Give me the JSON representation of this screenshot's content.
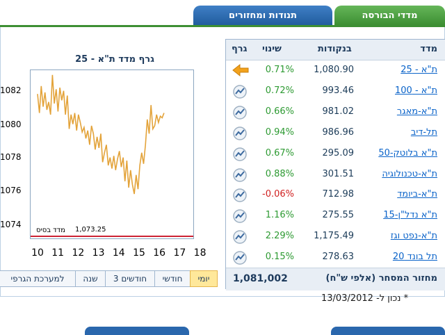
{
  "tabs": {
    "movements": "תנודות ומחזורים",
    "indices": "מדדי הבורסה"
  },
  "chart": {
    "title": "גרף מדד ת\"א - 25",
    "base_label": "מדד בסיס",
    "base_value": "1,073.25"
  },
  "chart_data": {
    "type": "line",
    "title": "גרף מדד ת\"א - 25",
    "xlabel": "",
    "ylabel": "",
    "x_ticks": [
      "10",
      "11",
      "12",
      "13",
      "14",
      "15",
      "16",
      "17",
      "18"
    ],
    "y_ticks": [
      "1082",
      "1080",
      "1078",
      "1076",
      "1074"
    ],
    "ylim": [
      1073.0,
      1083.6
    ],
    "xlim": [
      10,
      18
    ],
    "baseline": 1073.25,
    "series": [
      {
        "name": "",
        "color": "#e3a33a",
        "x": [
          10.0,
          10.1,
          10.2,
          10.3,
          10.4,
          10.5,
          10.6,
          10.7,
          10.8,
          10.9,
          11.0,
          11.1,
          11.2,
          11.3,
          11.4,
          11.5,
          11.6,
          11.7,
          11.8,
          11.9,
          12.0,
          12.1,
          12.2,
          12.3,
          12.4,
          12.5,
          12.6,
          12.7,
          12.8,
          12.9,
          13.0,
          13.1,
          13.2,
          13.3,
          13.4,
          13.5,
          13.6,
          13.7,
          13.8,
          13.9,
          14.0,
          14.1,
          14.2,
          14.3,
          14.4,
          14.5,
          14.6,
          14.7,
          14.8,
          14.9,
          15.0,
          15.1,
          15.2,
          15.3,
          15.4,
          15.5,
          15.6,
          15.7,
          15.8,
          15.9,
          16.0,
          16.1,
          16.2,
          16.3,
          16.4,
          16.5,
          16.6,
          16.7,
          16.8
        ],
        "values": [
          1082.1,
          1080.9,
          1082.6,
          1081.3,
          1082.2,
          1081.1,
          1081.6,
          1080.8,
          1083.3,
          1081.5,
          1082.4,
          1081.0,
          1082.5,
          1081.7,
          1082.3,
          1080.8,
          1082.0,
          1079.9,
          1080.8,
          1080.2,
          1080.9,
          1079.8,
          1080.8,
          1080.3,
          1079.7,
          1080.0,
          1079.3,
          1079.8,
          1078.9,
          1080.1,
          1079.6,
          1078.6,
          1079.4,
          1078.7,
          1079.6,
          1077.8,
          1078.4,
          1078.9,
          1077.6,
          1078.1,
          1077.4,
          1078.2,
          1077.3,
          1078.0,
          1078.5,
          1077.5,
          1078.1,
          1076.6,
          1077.9,
          1076.2,
          1077.3,
          1076.4,
          1075.8,
          1077.0,
          1076.1,
          1077.6,
          1078.4,
          1077.7,
          1078.9,
          1080.5,
          1079.6,
          1081.4,
          1079.9,
          1080.1,
          1080.8,
          1080.3,
          1080.7,
          1080.6,
          1080.9
        ]
      }
    ]
  },
  "period_buttons": [
    {
      "label": "יומי",
      "active": true
    },
    {
      "label": "חודשי",
      "active": false
    },
    {
      "label": "3 חודשים",
      "active": false
    },
    {
      "label": "שנה",
      "active": false
    },
    {
      "label": "למערכת הגרפי",
      "active": false
    }
  ],
  "table": {
    "headers": {
      "index": "מדד",
      "points": "בנקודות",
      "change": "שינוי",
      "graph": "גרף"
    },
    "rows": [
      {
        "name": "ת\"א - 25",
        "points": "1,080.90",
        "change": "0.71%",
        "dir": "pos",
        "icon": "arrow-left-icon"
      },
      {
        "name": "ת\"א - 100",
        "points": "993.46",
        "change": "0.72%",
        "dir": "pos",
        "icon": "chart-icon"
      },
      {
        "name": "ת\"א-מאגר",
        "points": "981.02",
        "change": "0.66%",
        "dir": "pos",
        "icon": "chart-icon"
      },
      {
        "name": "תל-דיב",
        "points": "986.96",
        "change": "0.94%",
        "dir": "pos",
        "icon": "chart-icon"
      },
      {
        "name": "ת\"א בלוטק-50",
        "points": "295.09",
        "change": "0.67%",
        "dir": "pos",
        "icon": "chart-icon"
      },
      {
        "name": "ת\"א-טכנולוגיה",
        "points": "301.51",
        "change": "0.88%",
        "dir": "pos",
        "icon": "chart-icon"
      },
      {
        "name": "ת\"א-ביומד",
        "points": "712.98",
        "change": "-0.06%",
        "dir": "neg",
        "icon": "chart-icon"
      },
      {
        "name": "ת\"א נדל\"ן-15",
        "points": "275.55",
        "change": "1.16%",
        "dir": "pos",
        "icon": "chart-icon"
      },
      {
        "name": "ת\"א-נפט וגז",
        "points": "1,175.49",
        "change": "2.29%",
        "dir": "pos",
        "icon": "chart-icon"
      },
      {
        "name": "תל בונד 20",
        "points": "278.63",
        "change": "0.15%",
        "dir": "pos",
        "icon": "chart-icon"
      }
    ],
    "turnover_label": "מחזור המסחר (אלפי ש\"ח)",
    "turnover_value": "1,081,002"
  },
  "updated": "* נכון ל- 13/03/2012",
  "colors": {
    "green_tab": "#4aa33f",
    "blue_tab": "#2a67ad",
    "positive": "#2d9a32",
    "negative": "#d01f1f",
    "line": "#e3a33a",
    "baseline": "#cc2233",
    "link": "#0a63c9"
  }
}
